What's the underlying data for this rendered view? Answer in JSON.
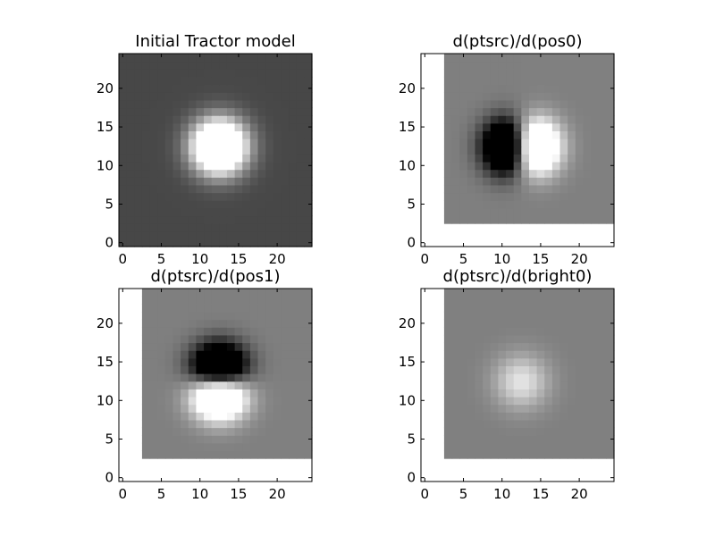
{
  "figure": {
    "background": "#ffffff",
    "cmap": "gray"
  },
  "chart_data": [
    {
      "type": "heatmap",
      "title": "Initial Tractor model",
      "image_size": [
        25,
        25
      ],
      "xlim": [
        -0.5,
        24.5
      ],
      "ylim": [
        -0.5,
        24.5
      ],
      "xticks": [
        0,
        5,
        10,
        15,
        20
      ],
      "yticks": [
        0,
        5,
        10,
        15,
        20
      ],
      "xtick_labels": [
        "0",
        "5",
        "10",
        "15",
        "20"
      ],
      "ytick_labels": [
        "0",
        "5",
        "10",
        "15",
        "20"
      ],
      "valid_region": {
        "x": [
          0,
          24
        ],
        "y": [
          0,
          24
        ]
      },
      "source_center": [
        12.5,
        12.5
      ],
      "psf_sigma": 2.4,
      "component": "model",
      "background_gray": 0.28,
      "saturation_level": 0.45
    },
    {
      "type": "heatmap",
      "title": "d(ptsrc)/d(pos0)",
      "image_size": [
        25,
        25
      ],
      "xlim": [
        -0.5,
        24.5
      ],
      "ylim": [
        -0.5,
        24.5
      ],
      "xticks": [
        0,
        5,
        10,
        15,
        20
      ],
      "yticks": [
        0,
        5,
        10,
        15,
        20
      ],
      "xtick_labels": [
        "0",
        "5",
        "10",
        "15",
        "20"
      ],
      "ytick_labels": [
        "0",
        "5",
        "10",
        "15",
        "20"
      ],
      "valid_region": {
        "x": [
          3,
          24
        ],
        "y": [
          3,
          24
        ]
      },
      "source_center": [
        12.5,
        12.5
      ],
      "psf_sigma": 2.4,
      "component": "dx",
      "background_gray": 0.5,
      "contrast": 3.5
    },
    {
      "type": "heatmap",
      "title": "d(ptsrc)/d(pos1)",
      "image_size": [
        25,
        25
      ],
      "xlim": [
        -0.5,
        24.5
      ],
      "ylim": [
        -0.5,
        24.5
      ],
      "xticks": [
        0,
        5,
        10,
        15,
        20
      ],
      "yticks": [
        0,
        5,
        10,
        15,
        20
      ],
      "xtick_labels": [
        "0",
        "5",
        "10",
        "15",
        "20"
      ],
      "ytick_labels": [
        "0",
        "5",
        "10",
        "15",
        "20"
      ],
      "valid_region": {
        "x": [
          3,
          24
        ],
        "y": [
          3,
          24
        ]
      },
      "source_center": [
        12.5,
        12.5
      ],
      "psf_sigma": 2.4,
      "component": "dy",
      "background_gray": 0.5,
      "contrast": 3.5
    },
    {
      "type": "heatmap",
      "title": "d(ptsrc)/d(bright0)",
      "image_size": [
        25,
        25
      ],
      "xlim": [
        -0.5,
        24.5
      ],
      "ylim": [
        -0.5,
        24.5
      ],
      "xticks": [
        0,
        5,
        10,
        15,
        20
      ],
      "yticks": [
        0,
        5,
        10,
        15,
        20
      ],
      "xtick_labels": [
        "0",
        "5",
        "10",
        "15",
        "20"
      ],
      "ytick_labels": [
        "0",
        "5",
        "10",
        "15",
        "20"
      ],
      "valid_region": {
        "x": [
          3,
          24
        ],
        "y": [
          3,
          24
        ]
      },
      "source_center": [
        12.5,
        12.5
      ],
      "psf_sigma": 2.4,
      "component": "bright",
      "background_gray": 0.5,
      "peak_gray": 0.9
    }
  ]
}
